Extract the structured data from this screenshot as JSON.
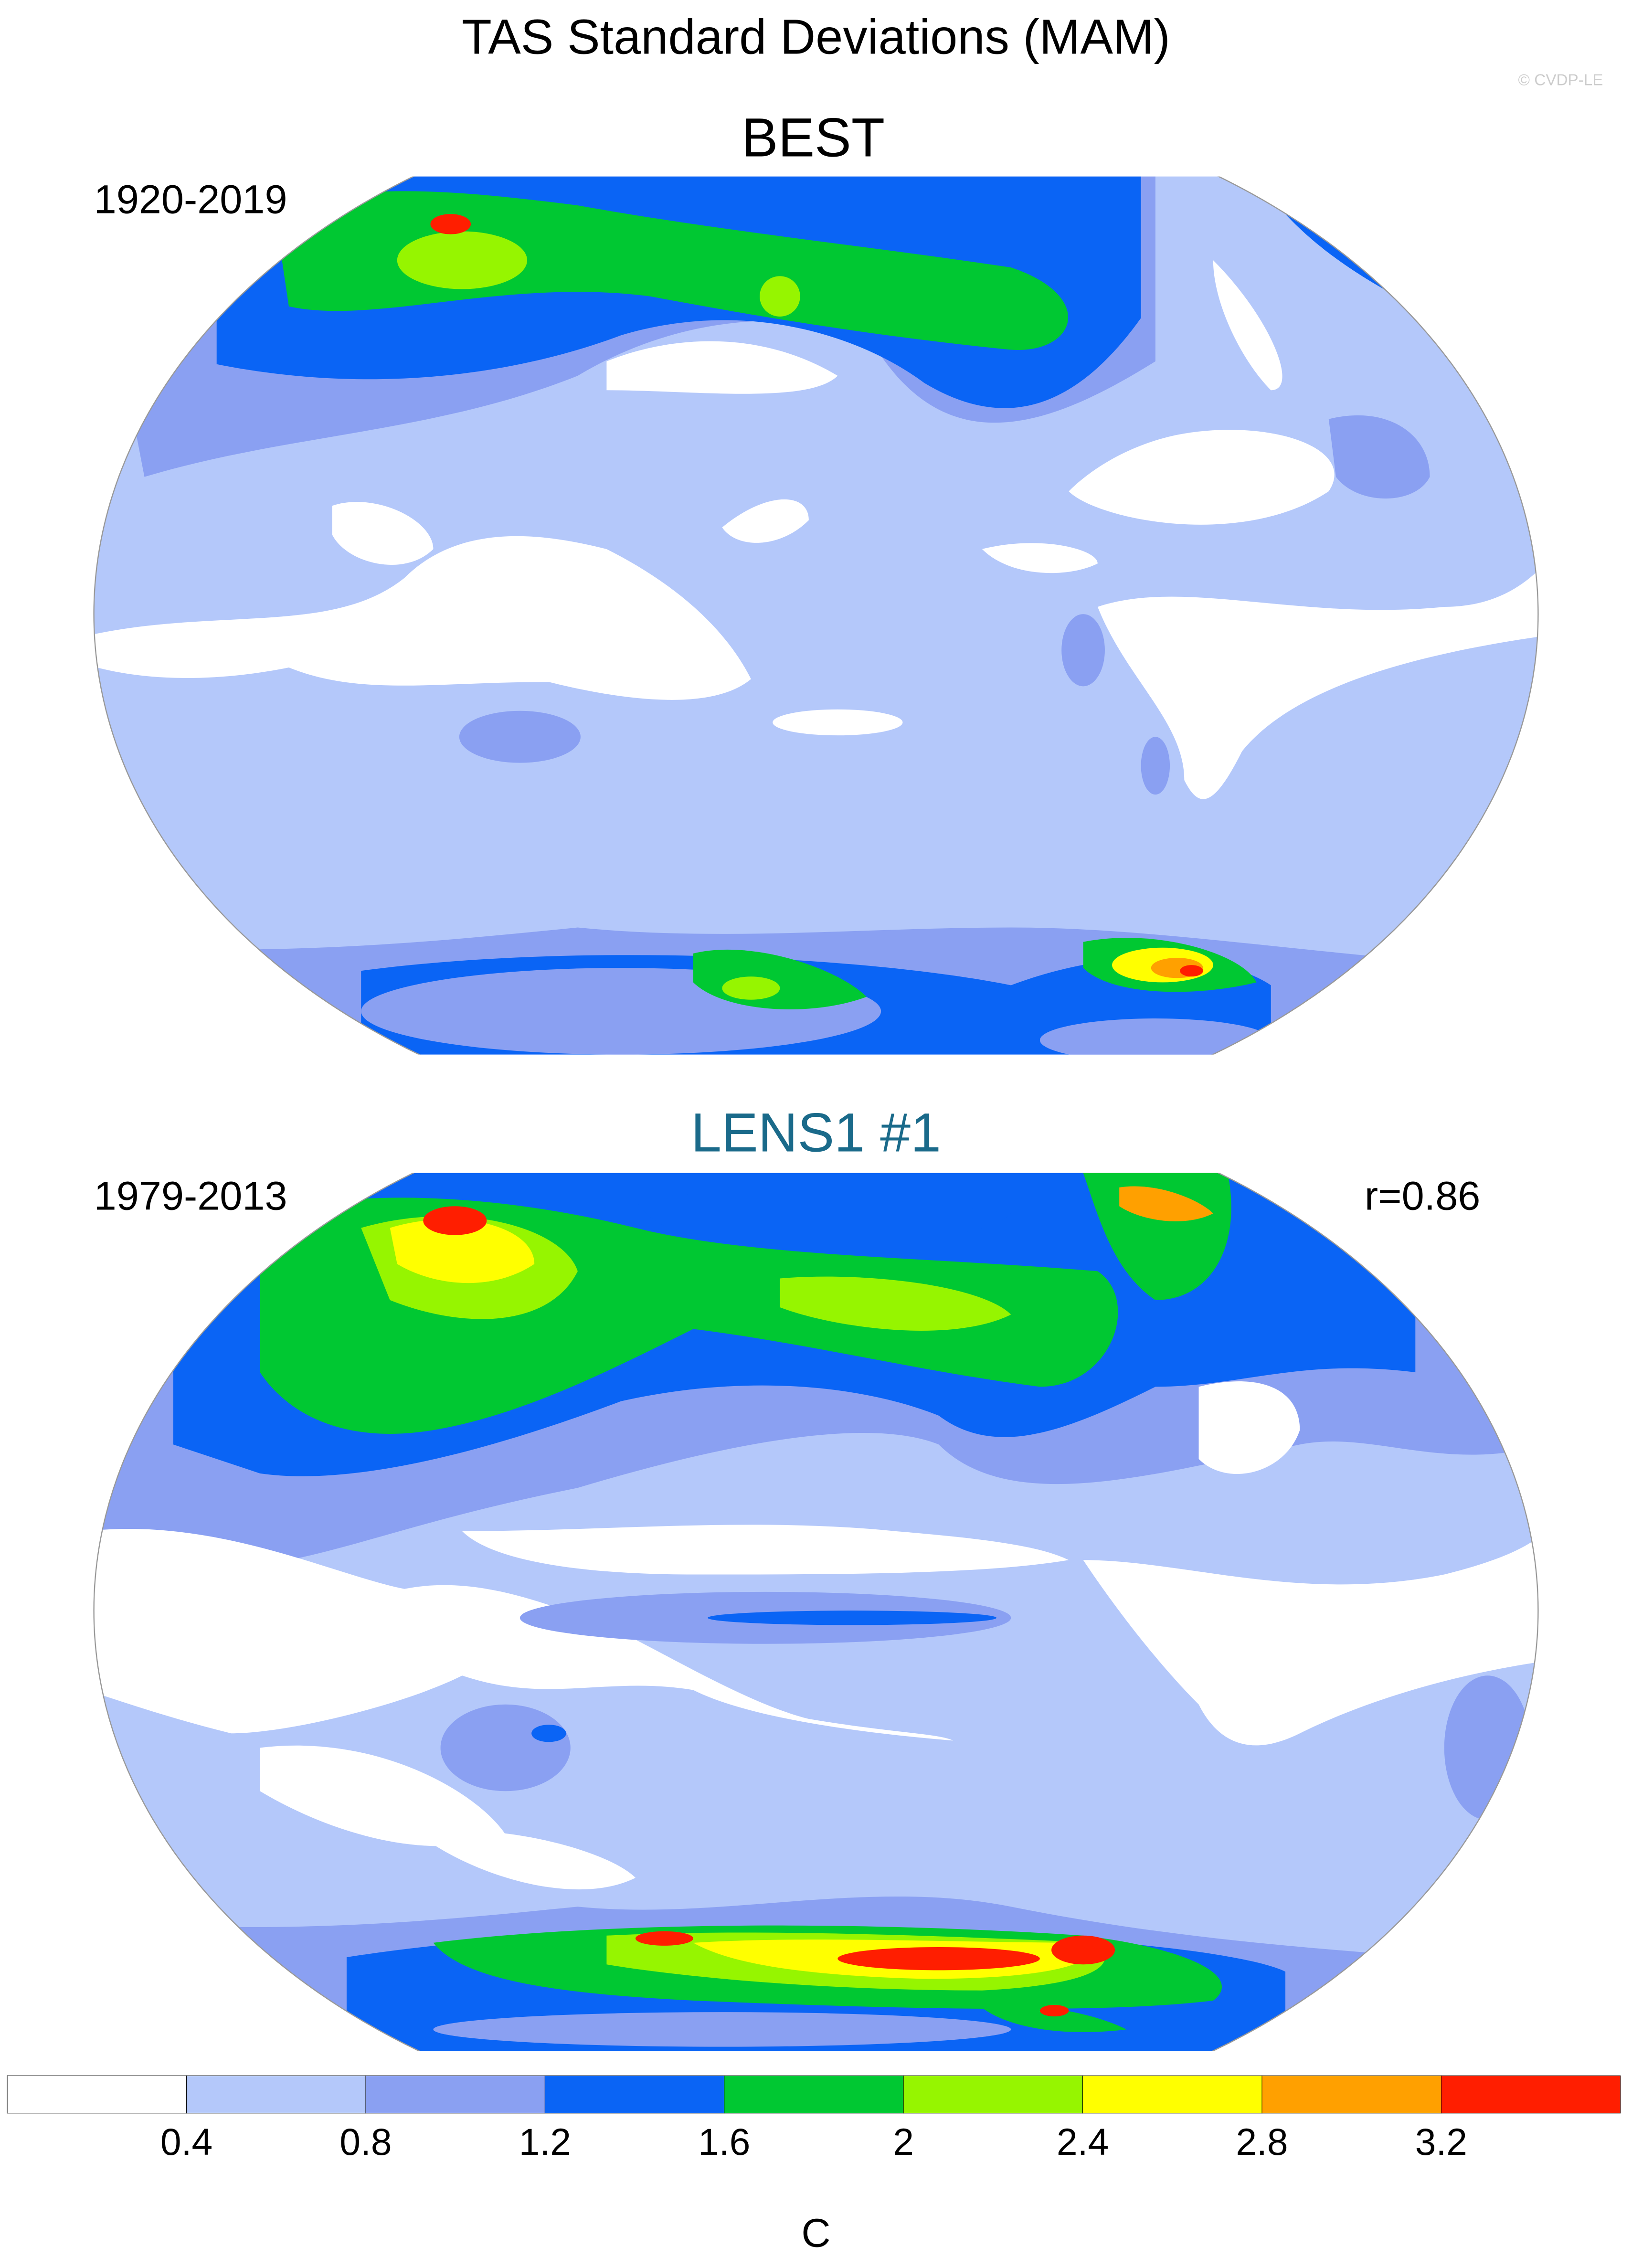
{
  "title": "TAS Standard Deviations (MAM)",
  "watermark": "© CVDP-LE",
  "panels": [
    {
      "title": "BEST",
      "period": "1920-2019"
    },
    {
      "title": "LENS1 #1",
      "period": "1979-2013",
      "stat": "r=0.86"
    }
  ],
  "colorbar": {
    "levels": [
      0.4,
      0.8,
      1.2,
      1.6,
      2,
      2.4,
      2.8,
      3.2
    ],
    "colors": [
      "#ffffff",
      "#b4c8fa",
      "#8aa0f2",
      "#0a64f5",
      "#00c832",
      "#96f500",
      "#ffff00",
      "#ffa000",
      "#ff1e00"
    ],
    "label": "C"
  }
}
